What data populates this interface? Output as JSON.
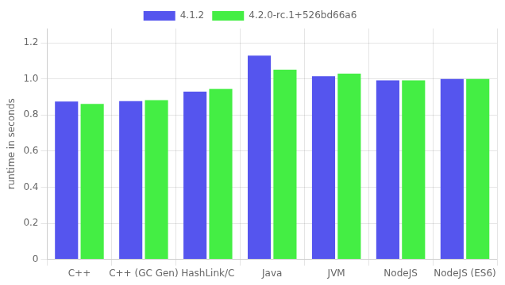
{
  "chart_data": {
    "type": "bar",
    "categories": [
      "C++",
      "C++ (GC Gen)",
      "HashLink/C",
      "Java",
      "JVM",
      "NodeJS",
      "NodeJS (ES6)"
    ],
    "series": [
      {
        "name": "4.1.2",
        "color": "#5555ee",
        "values": [
          0.875,
          0.877,
          0.93,
          1.13,
          1.015,
          0.993,
          1.0
        ]
      },
      {
        "name": "4.2.0-rc.1+526bd66a6",
        "color": "#44ee44",
        "values": [
          0.862,
          0.883,
          0.945,
          1.052,
          1.03,
          0.993,
          1.0
        ]
      }
    ],
    "ylabel": "runtime in seconds",
    "ylim": [
      0,
      1.28
    ],
    "yticks": [
      0,
      0.2,
      0.4,
      0.6,
      0.8,
      {
        "value": 1,
        "label": "1.0"
      },
      1.2
    ],
    "grid": true,
    "legend": "top"
  }
}
